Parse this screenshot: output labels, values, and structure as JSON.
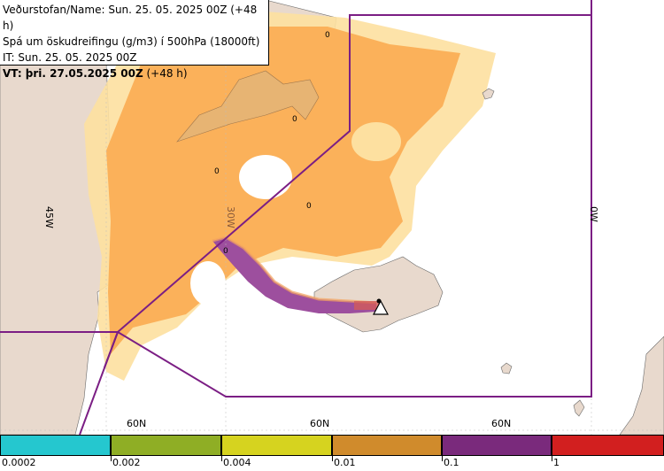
{
  "header": {
    "line1": "Veðurstofan/Name: Sun. 25. 05. 2025 00Z (+48 h)",
    "line2": "Spá um öskudreifingu (g/m3) í 500hPa (18000ft)",
    "line3": "IT: Sun. 25. 05. 2025 00Z",
    "line4_bold": "VT: þri. 27.05.2025 00Z",
    "line4_rest": " (+48 h)"
  },
  "map": {
    "meridian_labels": [
      "45W",
      "30W",
      "0W"
    ],
    "parallel_labels": [
      "60N",
      "60N",
      "60N"
    ],
    "zero_labels": [
      "0",
      "0",
      "0",
      "0",
      "0"
    ],
    "volcano_symbol": "volcano-warning-icon"
  },
  "legend": {
    "labels": [
      "0.0002",
      "0.002",
      "0.004",
      "0.01",
      "0.1",
      "1"
    ],
    "colors": [
      "#25c7cf",
      "#8fae25",
      "#d6d31f",
      "#d08b2c",
      "#7a2a7c",
      "#d21f1f"
    ]
  },
  "colors": {
    "land": "#e8d9cd",
    "ash_low": "#fde0a0",
    "ash_mid": "#fbb15a",
    "ash_high": "#9d4f9e",
    "boundary": "#7b1e84"
  }
}
